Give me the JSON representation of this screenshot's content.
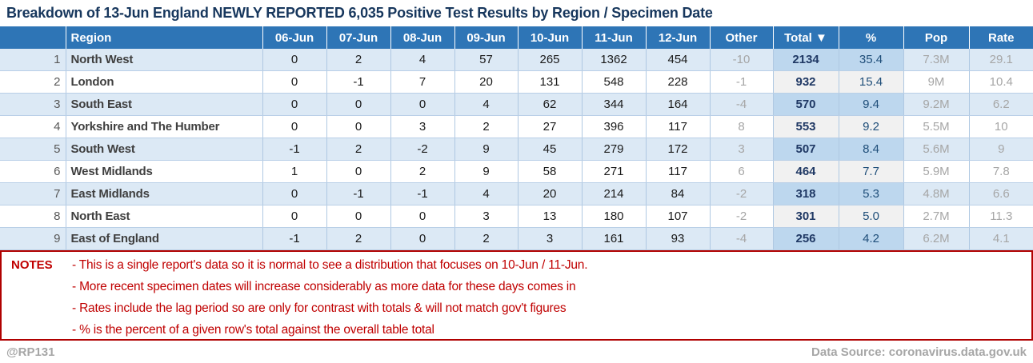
{
  "title": "Breakdown of 13-Jun England NEWLY REPORTED 6,035 Positive Test Results by Region / Specimen Date",
  "colors": {
    "header_bg": "#2E75B6",
    "stripe_row": "#DCE9F5",
    "total_cell_stripe": "#BDD7EE",
    "total_cell_plain": "#F1F1F1",
    "title_navy": "#17375D",
    "total_text_navy": "#1F3864",
    "pct_text_navy": "#1F4E79",
    "muted_gray": "#A6A6A6",
    "notes_red": "#C00000",
    "notes_border_red": "#B00000"
  },
  "table": {
    "header": [
      {
        "name": "col-rownum",
        "label": "",
        "interactable": false
      },
      {
        "name": "col-region",
        "label": "Region",
        "interactable": false
      },
      {
        "name": "col-06-jun",
        "label": "06-Jun",
        "interactable": false
      },
      {
        "name": "col-07-jun",
        "label": "07-Jun",
        "interactable": false
      },
      {
        "name": "col-08-jun",
        "label": "08-Jun",
        "interactable": false
      },
      {
        "name": "col-09-jun",
        "label": "09-Jun",
        "interactable": false
      },
      {
        "name": "col-10-jun",
        "label": "10-Jun",
        "interactable": false
      },
      {
        "name": "col-11-jun",
        "label": "11-Jun",
        "interactable": false
      },
      {
        "name": "col-12-jun",
        "label": "12-Jun",
        "interactable": false
      },
      {
        "name": "col-other",
        "label": "Other",
        "interactable": false
      },
      {
        "name": "col-total-sort",
        "label": "Total ▼",
        "interactable": true
      },
      {
        "name": "col-percent",
        "label": "%",
        "interactable": false
      },
      {
        "name": "col-pop",
        "label": "Pop",
        "interactable": false
      },
      {
        "name": "col-rate",
        "label": "Rate",
        "interactable": false
      }
    ],
    "rows": [
      {
        "num": "1",
        "region": "North West",
        "values": [
          "0",
          "2",
          "4",
          "57",
          "265",
          "1362",
          "454"
        ],
        "other": "-10",
        "total": "2134",
        "pct": "35.4",
        "pop": "7.3M",
        "rate": "29.1"
      },
      {
        "num": "2",
        "region": "London",
        "values": [
          "0",
          "-1",
          "7",
          "20",
          "131",
          "548",
          "228"
        ],
        "other": "-1",
        "total": "932",
        "pct": "15.4",
        "pop": "9M",
        "rate": "10.4"
      },
      {
        "num": "3",
        "region": "South East",
        "values": [
          "0",
          "0",
          "0",
          "4",
          "62",
          "344",
          "164"
        ],
        "other": "-4",
        "total": "570",
        "pct": "9.4",
        "pop": "9.2M",
        "rate": "6.2"
      },
      {
        "num": "4",
        "region": "Yorkshire and The Humber",
        "values": [
          "0",
          "0",
          "3",
          "2",
          "27",
          "396",
          "117"
        ],
        "other": "8",
        "total": "553",
        "pct": "9.2",
        "pop": "5.5M",
        "rate": "10"
      },
      {
        "num": "5",
        "region": "South West",
        "values": [
          "-1",
          "2",
          "-2",
          "9",
          "45",
          "279",
          "172"
        ],
        "other": "3",
        "total": "507",
        "pct": "8.4",
        "pop": "5.6M",
        "rate": "9"
      },
      {
        "num": "6",
        "region": "West Midlands",
        "values": [
          "1",
          "0",
          "2",
          "9",
          "58",
          "271",
          "117"
        ],
        "other": "6",
        "total": "464",
        "pct": "7.7",
        "pop": "5.9M",
        "rate": "7.8"
      },
      {
        "num": "7",
        "region": "East Midlands",
        "values": [
          "0",
          "-1",
          "-1",
          "4",
          "20",
          "214",
          "84"
        ],
        "other": "-2",
        "total": "318",
        "pct": "5.3",
        "pop": "4.8M",
        "rate": "6.6"
      },
      {
        "num": "8",
        "region": "North East",
        "values": [
          "0",
          "0",
          "0",
          "3",
          "13",
          "180",
          "107"
        ],
        "other": "-2",
        "total": "301",
        "pct": "5.0",
        "pop": "2.7M",
        "rate": "11.3"
      },
      {
        "num": "9",
        "region": "East of England",
        "values": [
          "-1",
          "2",
          "0",
          "2",
          "3",
          "161",
          "93"
        ],
        "other": "-4",
        "total": "256",
        "pct": "4.2",
        "pop": "6.2M",
        "rate": "4.1"
      }
    ]
  },
  "notes": {
    "label": "NOTES",
    "items": [
      "- This is a single report's data so it is normal to see a distribution that focuses on 10-Jun / 11-Jun.",
      "- More recent specimen dates will increase considerably as more data for these days comes in",
      "- Rates include the lag period so are only for contrast with totals & will not match gov't figures",
      "- % is the percent of a given row's total against the overall table total"
    ]
  },
  "footer": {
    "handle": "@RP131",
    "source": "Data Source: coronavirus.data.gov.uk"
  }
}
